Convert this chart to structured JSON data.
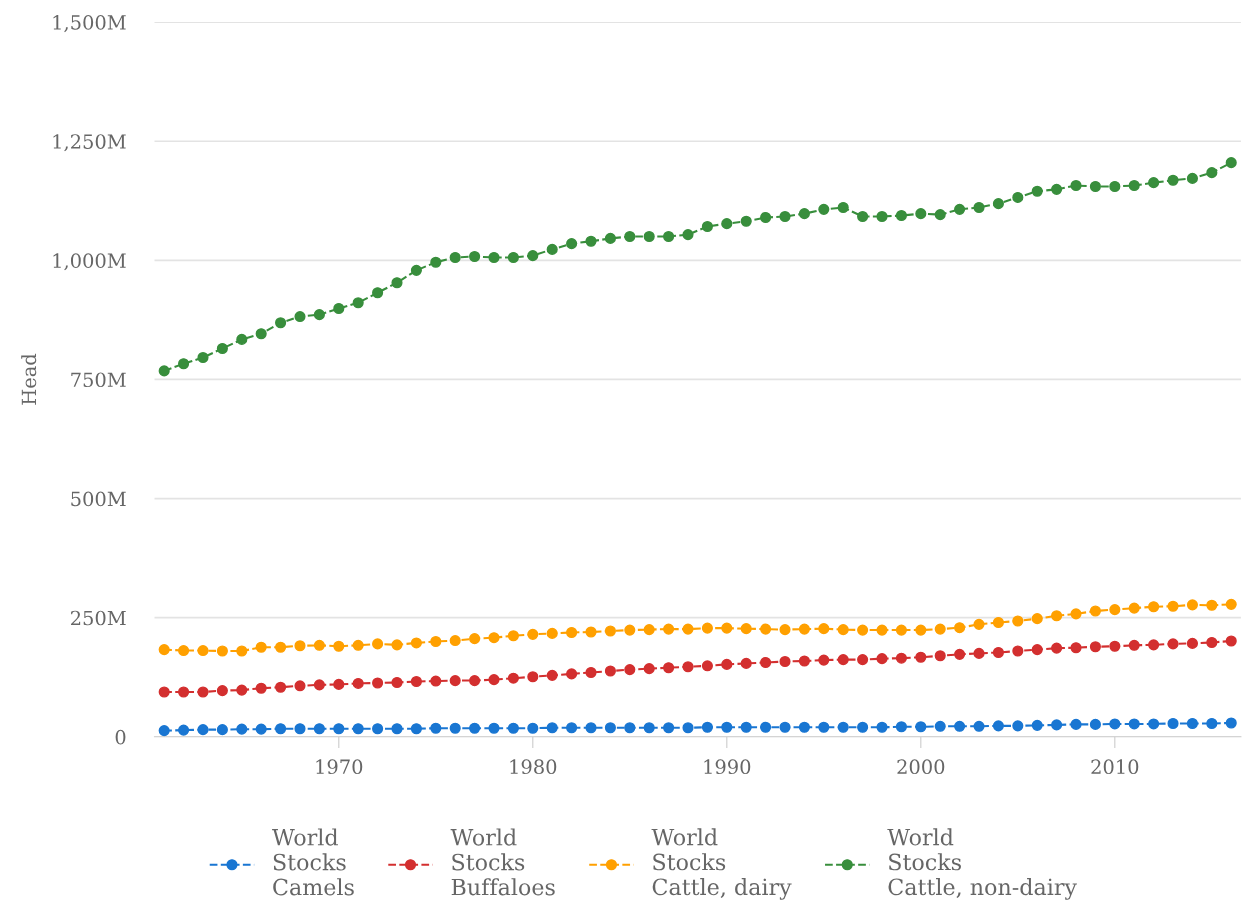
{
  "chart_data": {
    "type": "line",
    "ylabel": "Head",
    "x": [
      1961,
      1962,
      1963,
      1964,
      1965,
      1966,
      1967,
      1968,
      1969,
      1970,
      1971,
      1972,
      1973,
      1974,
      1975,
      1976,
      1977,
      1978,
      1979,
      1980,
      1981,
      1982,
      1983,
      1984,
      1985,
      1986,
      1987,
      1988,
      1989,
      1990,
      1991,
      1992,
      1993,
      1994,
      1995,
      1996,
      1997,
      1998,
      1999,
      2000,
      2001,
      2002,
      2003,
      2004,
      2005,
      2006,
      2007,
      2008,
      2009,
      2010,
      2011,
      2012,
      2013,
      2014,
      2015,
      2016
    ],
    "xlim": [
      1960.5,
      2016.5
    ],
    "xticks": [
      1970,
      1980,
      1990,
      2000,
      2010
    ],
    "ylim": [
      0,
      1500
    ],
    "yticks": [
      {
        "value": 0,
        "label": "0"
      },
      {
        "value": 250,
        "label": "250M"
      },
      {
        "value": 500,
        "label": "500M"
      },
      {
        "value": 750,
        "label": "750M"
      },
      {
        "value": 1000,
        "label": "1,000M"
      },
      {
        "value": 1250,
        "label": "1,250M"
      },
      {
        "value": 1500,
        "label": "1,500M"
      }
    ],
    "grid": "y",
    "legend": "bottom",
    "marker": "circle",
    "line_style": "dashed",
    "series": [
      {
        "name": "World\nStocks\nCamels",
        "color": "#1976d2",
        "values": [
          13,
          14,
          15,
          15,
          16,
          16,
          17,
          17,
          17,
          17,
          17,
          17,
          17,
          17,
          18,
          18,
          18,
          18,
          18,
          18,
          19,
          19,
          19,
          19,
          19,
          19,
          19,
          19,
          20,
          20,
          20,
          20,
          20,
          20,
          20,
          20,
          20,
          20,
          21,
          21,
          22,
          22,
          22,
          23,
          23,
          24,
          25,
          26,
          26,
          27,
          27,
          27,
          28,
          28,
          28,
          29
        ]
      },
      {
        "name": "World\nStocks\nBuffaloes",
        "color": "#d32f2f",
        "values": [
          94,
          94,
          94,
          97,
          98,
          102,
          104,
          107,
          109,
          110,
          112,
          113,
          114,
          116,
          117,
          118,
          118,
          120,
          123,
          126,
          129,
          132,
          135,
          138,
          141,
          143,
          145,
          147,
          149,
          152,
          154,
          156,
          158,
          159,
          161,
          162,
          162,
          164,
          165,
          167,
          170,
          173,
          175,
          177,
          180,
          183,
          186,
          187,
          189,
          190,
          192,
          193,
          195,
          196,
          198,
          201
        ]
      },
      {
        "name": "World\nStocks\nCattle, dairy",
        "color": "#ffa000",
        "values": [
          183,
          181,
          181,
          180,
          180,
          188,
          188,
          191,
          192,
          190,
          192,
          195,
          193,
          197,
          200,
          202,
          206,
          208,
          212,
          215,
          217,
          219,
          220,
          222,
          224,
          225,
          226,
          226,
          228,
          228,
          227,
          226,
          225,
          226,
          227,
          225,
          224,
          224,
          224,
          224,
          226,
          229,
          236,
          240,
          243,
          248,
          254,
          258,
          264,
          267,
          270,
          273,
          274,
          277,
          276,
          278
        ]
      },
      {
        "name": "World\nStocks\nCattle, non-dairy",
        "color": "#388e3c",
        "values": [
          768,
          783,
          796,
          815,
          834,
          846,
          869,
          882,
          886,
          899,
          911,
          932,
          953,
          979,
          996,
          1006,
          1008,
          1006,
          1006,
          1010,
          1023,
          1035,
          1040,
          1046,
          1050,
          1050,
          1050,
          1054,
          1071,
          1077,
          1082,
          1090,
          1092,
          1098,
          1107,
          1111,
          1092,
          1092,
          1094,
          1098,
          1096,
          1107,
          1111,
          1119,
          1132,
          1145,
          1149,
          1157,
          1155,
          1155,
          1157,
          1163,
          1168,
          1172,
          1184,
          1205
        ]
      }
    ]
  }
}
